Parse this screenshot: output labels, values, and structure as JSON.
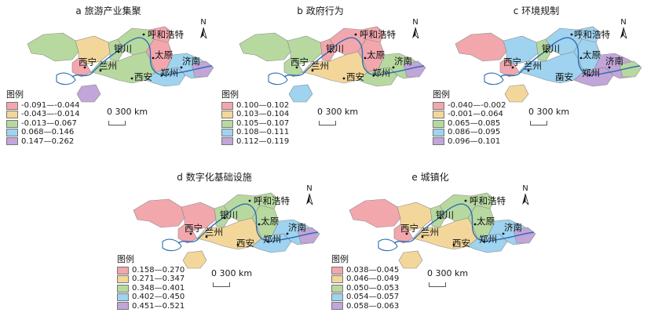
{
  "legend_title": "图例",
  "scale_label": "0   300 km",
  "north_label": "N",
  "cities": [
    {
      "key": "huhehaote",
      "name": "呼和浩特"
    },
    {
      "key": "yinchuan",
      "name": "银川"
    },
    {
      "key": "taiyuan",
      "name": "太原"
    },
    {
      "key": "xining",
      "name": "西宁"
    },
    {
      "key": "lanzhou",
      "name": "兰州"
    },
    {
      "key": "jinan",
      "name": "济南"
    },
    {
      "key": "xian",
      "name": "西安"
    },
    {
      "key": "zhengzhou",
      "name": "郑州"
    }
  ],
  "class_colors": {
    "c1": "#f2a7ad",
    "c2": "#f3d79a",
    "c3": "#b7d9a0",
    "c4": "#9fd3ef",
    "c5": "#c2a5d9"
  },
  "panels": [
    {
      "label": "a  旅游产业集聚",
      "legend": [
        "-0.091—-0.044",
        "-0.043—-0.014",
        "-0.013—0.067",
        "0.068—0.146",
        "0.147—0.262"
      ]
    },
    {
      "label": "b  政府行为",
      "legend": [
        "0.100—0.102",
        "0.103—0.104",
        "0.105—0.107",
        "0.108—0.111",
        "0.112—0.119"
      ]
    },
    {
      "label": "c  环境规制",
      "legend": [
        "-0.040—-0.002",
        "-0.001—0.064",
        "0.065—0.085",
        "0.086—0.095",
        "0.096—0.101"
      ]
    },
    {
      "label": "d  数字化基础设施",
      "legend": [
        "0.158—0.270",
        "0.271—0.347",
        "0.348—0.401",
        "0.402—0.450",
        "0.451—0.521"
      ]
    },
    {
      "label": "e  城镇化",
      "legend": [
        "0.038—0.045",
        "0.046—0.049",
        "0.050—0.053",
        "0.054—0.057",
        "0.058—0.063"
      ]
    }
  ]
}
